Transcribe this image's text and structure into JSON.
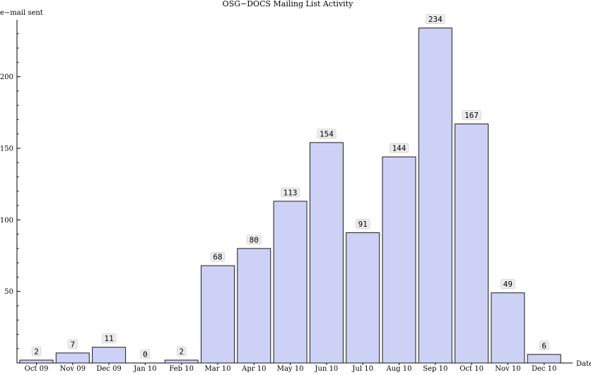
{
  "chart_data": {
    "type": "bar",
    "title": "OSG−DOCS Mailing List Activity",
    "ylabel": "e−mail sent",
    "xlabel": "Date",
    "categories": [
      "Oct 09",
      "Nov 09",
      "Dec 09",
      "Jan 10",
      "Feb 10",
      "Mar 10",
      "Apr 10",
      "May 10",
      "Jun 10",
      "Jul 10",
      "Aug 10",
      "Sep 10",
      "Oct 10",
      "Nov 10",
      "Dec 10"
    ],
    "values": [
      2,
      7,
      11,
      0,
      2,
      68,
      80,
      113,
      154,
      91,
      144,
      234,
      167,
      49,
      6
    ],
    "yticks": [
      50,
      100,
      150,
      200
    ],
    "ylim": [
      0,
      240
    ],
    "grid": false,
    "colors": {
      "bar_fill": "#ccd1f5",
      "bar_stroke": "#1a1a1a"
    }
  }
}
